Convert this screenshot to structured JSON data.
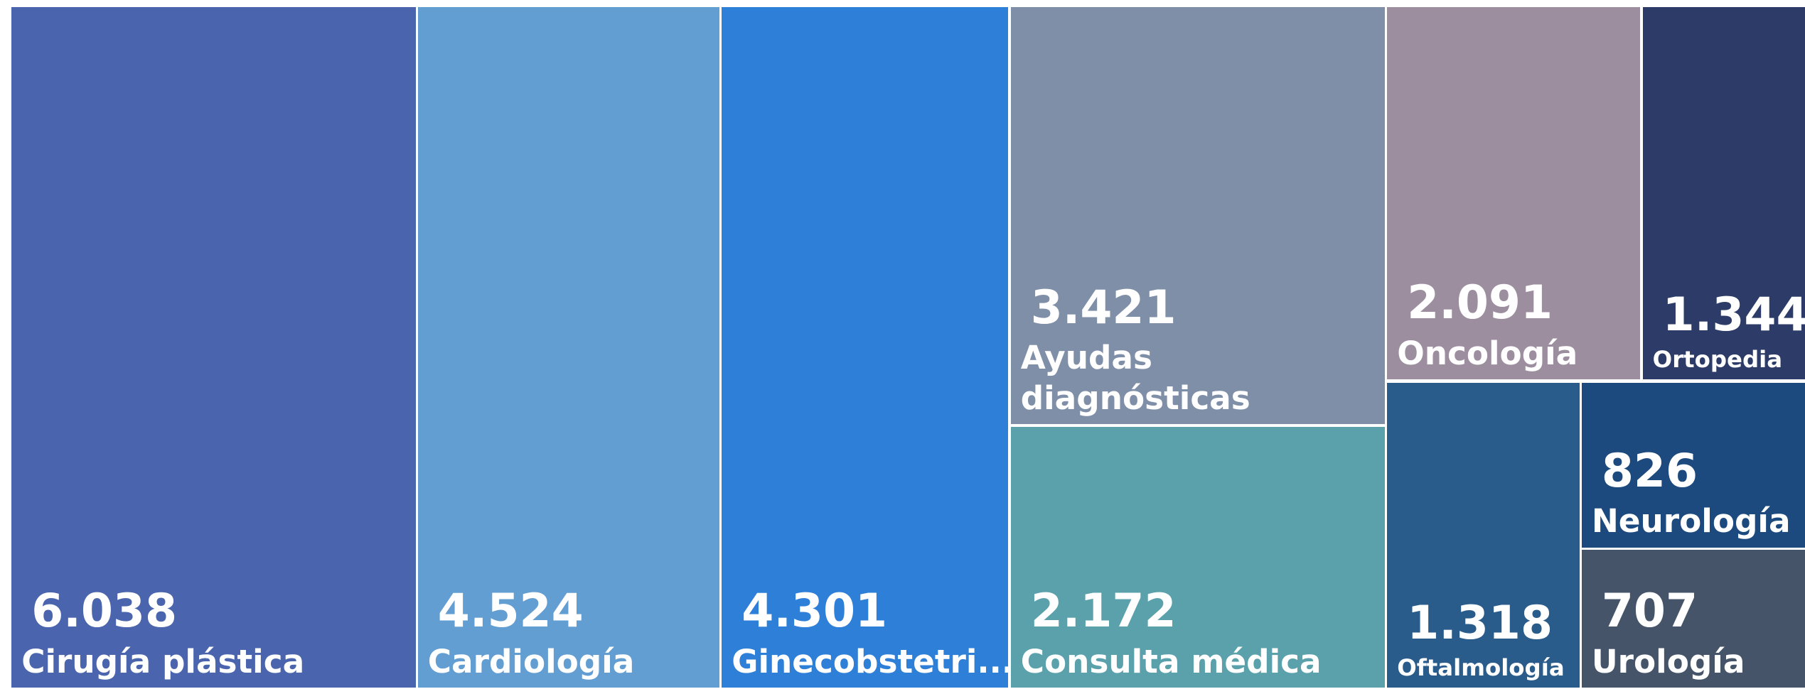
{
  "chart_data": {
    "type": "treemap",
    "categories": [
      "Cirugía plástica",
      "Cardiología",
      "Ginecobstetri...",
      "Ayudas diagnósticas",
      "Consulta médica",
      "Oncología",
      "Ortopedia",
      "Oftalmología",
      "Neurología",
      "Urología"
    ],
    "values": [
      6038,
      4524,
      4301,
      3421,
      2172,
      2091,
      1344,
      1318,
      826,
      707
    ],
    "value_labels": [
      "6.038",
      "4.524",
      "4.301",
      "3.421",
      "2.172",
      "2.091",
      "1.344",
      "1.318",
      "826",
      "707"
    ],
    "colors": [
      "#4a64ad",
      "#639ed2",
      "#2e7fd8",
      "#7f8fa8",
      "#5aa1ab",
      "#9d8e9f",
      "#2c3b67",
      "#2a5c8b",
      "#1c4a7e",
      "#465469"
    ]
  }
}
